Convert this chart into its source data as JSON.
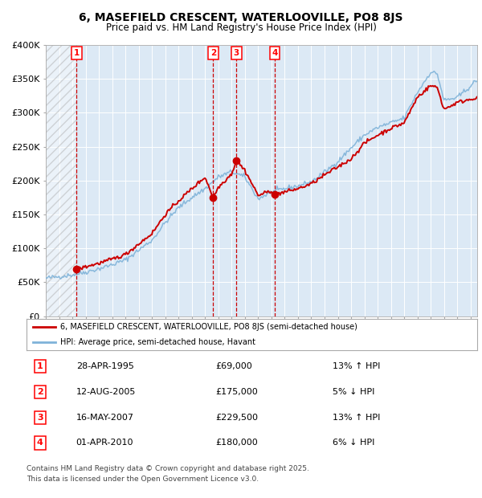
{
  "title_line1": "6, MASEFIELD CRESCENT, WATERLOOVILLE, PO8 8JS",
  "title_line2": "Price paid vs. HM Land Registry's House Price Index (HPI)",
  "legend_label_red": "6, MASEFIELD CRESCENT, WATERLOOVILLE, PO8 8JS (semi-detached house)",
  "legend_label_blue": "HPI: Average price, semi-detached house, Havant",
  "footnote": "Contains HM Land Registry data © Crown copyright and database right 2025.\nThis data is licensed under the Open Government Licence v3.0.",
  "transactions": [
    {
      "num": 1,
      "date": "28-APR-1995",
      "price": 69000,
      "rel": "13% ↑ HPI",
      "year": 1995.32
    },
    {
      "num": 2,
      "date": "12-AUG-2005",
      "price": 175000,
      "rel": "5% ↓ HPI",
      "year": 2005.61
    },
    {
      "num": 3,
      "date": "16-MAY-2007",
      "price": 229500,
      "rel": "13% ↑ HPI",
      "year": 2007.37
    },
    {
      "num": 4,
      "date": "01-APR-2010",
      "price": 180000,
      "rel": "6% ↓ HPI",
      "year": 2010.25
    }
  ],
  "ylim": [
    0,
    400000
  ],
  "ytick_vals": [
    0,
    50000,
    100000,
    150000,
    200000,
    250000,
    300000,
    350000,
    400000
  ],
  "ytick_labels": [
    "£0",
    "£50K",
    "£100K",
    "£150K",
    "£200K",
    "£250K",
    "£300K",
    "£350K",
    "£400K"
  ],
  "xlim_start": 1993.0,
  "xlim_end": 2025.5,
  "background_chart": "#dce9f5",
  "hatched_region_end": 1995.32,
  "red_line_color": "#cc0000",
  "blue_line_color": "#7fb3d9",
  "dot_color": "#cc0000",
  "vline_color": "#cc0000",
  "hpi_key_years": [
    1993,
    1995,
    1996,
    1997,
    1998,
    1999,
    2001,
    2002,
    2003,
    2004,
    2005,
    2006,
    2007,
    2008,
    2009,
    2010,
    2011,
    2012,
    2013,
    2014,
    2015,
    2016,
    2017,
    2018,
    2019,
    2020,
    2021,
    2022,
    2022.5,
    2023,
    2024,
    2025.5
  ],
  "hpi_key_vals": [
    56000,
    61000,
    65000,
    70000,
    76000,
    83000,
    112000,
    138000,
    160000,
    175000,
    188000,
    205000,
    213000,
    205000,
    173000,
    183000,
    188000,
    192000,
    198000,
    212000,
    228000,
    248000,
    267000,
    278000,
    285000,
    292000,
    330000,
    360000,
    357000,
    318000,
    322000,
    348000
  ],
  "red_key_years": [
    1995.32,
    1996,
    1997,
    1998,
    1999,
    2001,
    2002,
    2003,
    2004,
    2005,
    2005.61,
    2006,
    2007,
    2007.37,
    2008,
    2009,
    2010,
    2010.25,
    2011,
    2012,
    2013,
    2014,
    2015,
    2016,
    2017,
    2018,
    2019,
    2020,
    2021,
    2022,
    2022.5,
    2023,
    2024,
    2025.4
  ],
  "red_key_vals": [
    69000,
    73000,
    78000,
    84000,
    91000,
    122000,
    150000,
    170000,
    188000,
    205000,
    175000,
    190000,
    210000,
    229500,
    215000,
    178000,
    185000,
    180000,
    183000,
    188000,
    195000,
    208000,
    220000,
    232000,
    255000,
    267000,
    277000,
    285000,
    323000,
    340000,
    337000,
    305000,
    315000,
    322000
  ]
}
